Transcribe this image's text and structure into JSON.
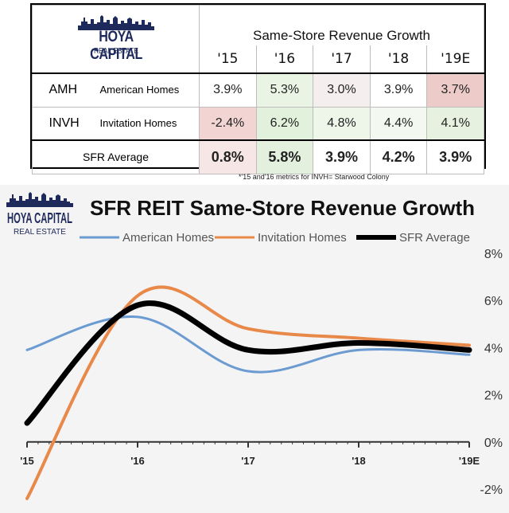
{
  "logo": {
    "brand_top": "HOYA CAPITAL",
    "brand_bottom": "REAL ESTATE"
  },
  "table": {
    "header_title": "Same-Store Revenue Growth",
    "years": [
      "'15",
      "'16",
      "'17",
      "'18",
      "'19E"
    ],
    "rows": [
      {
        "ticker": "AMH",
        "name": "American Homes",
        "values": [
          "3.9%",
          "5.3%",
          "3.0%",
          "3.9%",
          "3.7%"
        ],
        "colors": [
          "#ffffff",
          "#e9f4e4",
          "#f4eeee",
          "#ffffff",
          "#eccbc8"
        ]
      },
      {
        "ticker": "INVH",
        "name": "Invitation Homes",
        "values": [
          "-2.4%",
          "6.2%",
          "4.8%",
          "4.4%",
          "4.1%"
        ],
        "colors": [
          "#f2d4d2",
          "#e2f1dc",
          "#eef6ea",
          "#f3f8f1",
          "#e6f2df"
        ]
      }
    ],
    "average": {
      "label": "SFR Average",
      "values": [
        "0.8%",
        "5.8%",
        "3.9%",
        "4.2%",
        "3.9%"
      ],
      "colors": [
        "#f6e7e6",
        "#e3f0de",
        "#ffffff",
        "#ffffff",
        "#ffffff"
      ]
    }
  },
  "footnote": "*'15 and'16 metrics for INVH= Starwood Colony",
  "chart_data": {
    "type": "line",
    "title": "SFR REIT Same-Store Revenue Growth",
    "categories": [
      "'15",
      "'16",
      "'17",
      "'18",
      "'19E"
    ],
    "ylim": [
      -2,
      8
    ],
    "yticks": [
      -2,
      0,
      2,
      4,
      6,
      8
    ],
    "ytick_labels": [
      "-2%",
      "0%",
      "2%",
      "4%",
      "6%",
      "8%"
    ],
    "y_axis_position": "right",
    "legend_position": "top",
    "smooth": true,
    "series": [
      {
        "name": "American Homes",
        "values": [
          3.9,
          5.3,
          3.0,
          3.9,
          3.7
        ],
        "color": "#6b9bd1"
      },
      {
        "name": "Invitation Homes",
        "values": [
          -2.4,
          6.2,
          4.8,
          4.4,
          4.1
        ],
        "color": "#e8894a"
      },
      {
        "name": "SFR Average",
        "values": [
          0.8,
          5.8,
          3.9,
          4.2,
          3.9
        ],
        "color": "#000000"
      }
    ]
  }
}
